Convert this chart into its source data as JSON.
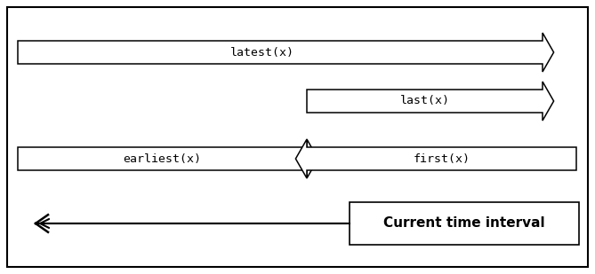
{
  "bg_color": "#ffffff",
  "border_color": "#000000",
  "arrow_color": "#ffffff",
  "arrow_edge_color": "#000000",
  "text_color": "#000000",
  "fig_width": 6.69,
  "fig_height": 3.09,
  "current_time_label": "Current time interval",
  "earliest_label": "earliest(x)",
  "first_label": "first(x)",
  "last_label": "last(x)",
  "latest_label": "latest(x)",
  "font_family": "monospace"
}
